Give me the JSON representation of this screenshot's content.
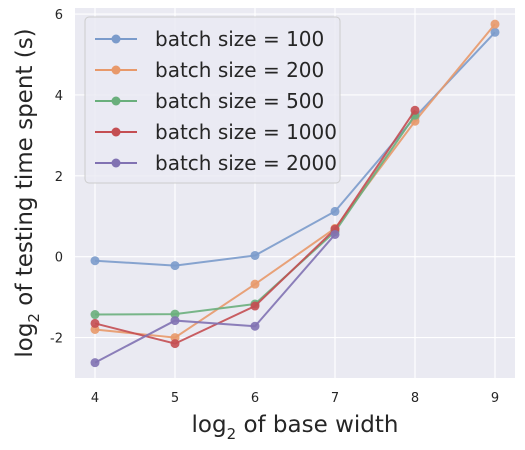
{
  "chart_data": {
    "type": "line",
    "xlabel": "of base width",
    "ylabel": "of testing time spent (s)",
    "label_prefix": "log",
    "label_sub": "2",
    "xlim": [
      3.75,
      9.25
    ],
    "ylim": [
      -3.0,
      6.15
    ],
    "xticks": [
      "4",
      "5",
      "6",
      "7",
      "8",
      "9"
    ],
    "yticks": [
      "-2",
      "0",
      "2",
      "4",
      "6"
    ],
    "grid": true,
    "legend_position": "top-left",
    "series": [
      {
        "name": "batch size = 100",
        "color": "#7b9bcb",
        "x": [
          4,
          5,
          6,
          7,
          8,
          9
        ],
        "y": [
          -0.1,
          -0.22,
          0.03,
          1.12,
          3.45,
          5.55
        ]
      },
      {
        "name": "batch size = 200",
        "color": "#e8996a",
        "x": [
          4,
          5,
          6,
          7,
          8,
          9
        ],
        "y": [
          -1.8,
          -2.0,
          -0.68,
          0.7,
          3.35,
          5.75
        ]
      },
      {
        "name": "batch size = 500",
        "color": "#6aaf7c",
        "x": [
          4,
          5,
          6,
          7,
          8
        ],
        "y": [
          -1.43,
          -1.42,
          -1.17,
          0.62,
          3.5
        ]
      },
      {
        "name": "batch size = 1000",
        "color": "#c44e52",
        "x": [
          4,
          5,
          6,
          7,
          8
        ],
        "y": [
          -1.65,
          -2.15,
          -1.22,
          0.68,
          3.62
        ]
      },
      {
        "name": "batch size = 2000",
        "color": "#8172b2",
        "x": [
          4,
          5,
          6,
          7
        ],
        "y": [
          -2.62,
          -1.58,
          -1.72,
          0.55
        ]
      }
    ]
  }
}
